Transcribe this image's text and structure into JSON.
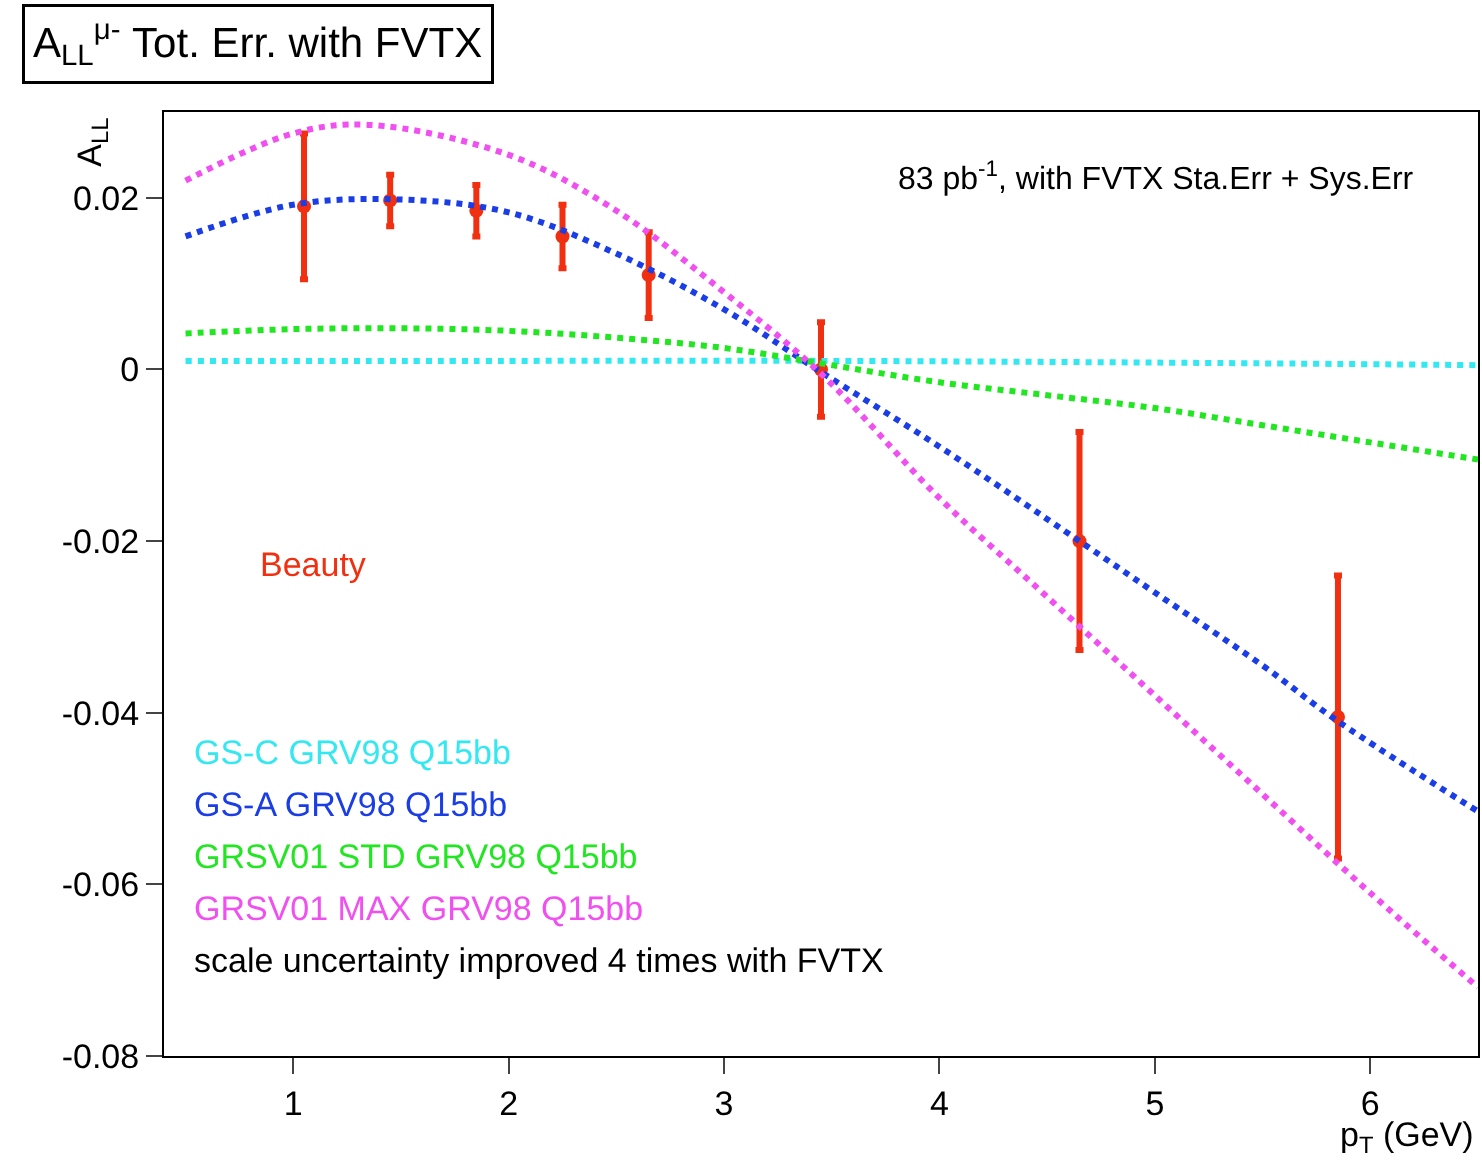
{
  "chart_data": {
    "type": "line",
    "title": "A$_{LL}$$^{μ-}$ Tot. Err. with FVTX",
    "xlabel": "p$_{T}$ (GeV)",
    "ylabel": "A$_{LL}$",
    "xlim": [
      0.4,
      6.5
    ],
    "xticks": [
      1,
      2,
      3,
      4,
      5,
      6
    ],
    "ylim": [
      -0.08,
      0.03
    ],
    "yticks": [
      {
        "value": -0.08,
        "label": "-0.08"
      },
      {
        "value": -0.06,
        "label": "-0.06"
      },
      {
        "value": -0.04,
        "label": "-0.04"
      },
      {
        "value": -0.02,
        "label": "-0.02"
      },
      {
        "value": 0,
        "label": "0"
      },
      {
        "value": 0.02,
        "label": "0.02"
      }
    ],
    "legend": "bottom left",
    "series": [
      {
        "name": "Beauty",
        "type": "scatter",
        "marker": "circle",
        "color": "#f03010",
        "x": [
          1.05,
          1.45,
          1.85,
          2.25,
          2.65,
          3.45,
          4.65,
          5.85
        ],
        "values": [
          0.019,
          0.0197,
          0.0185,
          0.0155,
          0.011,
          0.0,
          -0.02,
          -0.0405
        ],
        "errors": [
          0.0085,
          0.003,
          0.003,
          0.0037,
          0.005,
          0.0055,
          0.0127,
          0.0165
        ]
      },
      {
        "name": "GS-C GRV98 Q15bb",
        "line_style": "dotted",
        "color": "#33e8f0",
        "x": [
          0.5,
          2.0,
          3.45,
          5.0,
          6.5
        ],
        "values": [
          0.001,
          0.001,
          0.001,
          0.0008,
          0.0005
        ]
      },
      {
        "name": "GS-A GRV98 Q15bb",
        "line_style": "dotted",
        "color": "#1a3de6",
        "x": [
          0.5,
          1.0,
          1.5,
          2.0,
          2.5,
          3.0,
          3.45,
          4.0,
          4.65,
          5.0,
          5.5,
          5.85,
          6.5
        ],
        "values": [
          0.0155,
          0.0192,
          0.0198,
          0.0183,
          0.0135,
          0.007,
          -0.0003,
          -0.009,
          -0.02,
          -0.026,
          -0.0345,
          -0.041,
          -0.0515
        ]
      },
      {
        "name": "GRSV01 STD GRV98 Q15bb",
        "line_style": "dotted",
        "color": "#22e622",
        "x": [
          0.5,
          1.0,
          1.5,
          2.0,
          2.5,
          3.0,
          3.5,
          4.0,
          4.5,
          5.0,
          5.5,
          6.0,
          6.5
        ],
        "values": [
          0.0042,
          0.0047,
          0.0048,
          0.0045,
          0.0037,
          0.0025,
          0.0005,
          -0.0015,
          -0.003,
          -0.0045,
          -0.0065,
          -0.0085,
          -0.0105
        ]
      },
      {
        "name": "GRSV01 MAX GRV98 Q15bb",
        "line_style": "dotted",
        "color": "#f050f0",
        "x": [
          0.5,
          1.0,
          1.35,
          2.0,
          2.5,
          3.0,
          3.45,
          4.0,
          4.5,
          5.0,
          5.5,
          6.0,
          6.5
        ],
        "values": [
          0.022,
          0.0275,
          0.0285,
          0.025,
          0.0185,
          0.009,
          -0.0005,
          -0.015,
          -0.0265,
          -0.038,
          -0.0495,
          -0.061,
          -0.072
        ]
      }
    ],
    "annotations": [
      "83 pb$^{-1}$, with FVTX Sta.Err + Sys.Err",
      "scale uncertainty improved 4 times with FVTX"
    ]
  }
}
